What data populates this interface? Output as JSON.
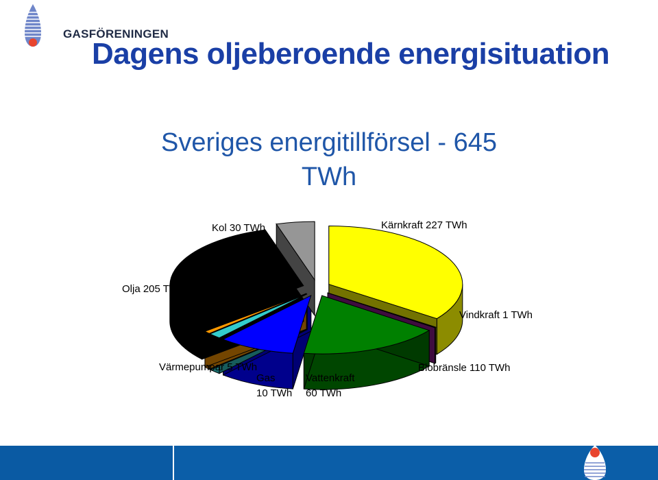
{
  "logo": {
    "text": "GASFÖRENINGEN"
  },
  "slide": {
    "title": "Dagens oljeberoende energisituation"
  },
  "chart_data": {
    "type": "pie",
    "title_line1": "Sveriges energitillförsel - 645",
    "title_line2": "TWh",
    "slices": [
      {
        "name": "Kärnkraft",
        "value": 227,
        "label": "Kärnkraft 227 TWh",
        "color": "#ffff00"
      },
      {
        "name": "Vindkraft",
        "value": 1,
        "label": "Vindkraft 1 TWh",
        "color": "#8b1a8b"
      },
      {
        "name": "Biobränsle",
        "value": 110,
        "label": "Biobränsle 110 TWh",
        "color": "#008000"
      },
      {
        "name": "Vattenkraft",
        "value": 60,
        "label_line1": "Vattenkraft",
        "label_line2": "60 TWh",
        "color": "#0000ff"
      },
      {
        "name": "Gas",
        "value": 10,
        "label_line1": "Gas",
        "label_line2": "10 TWh",
        "color": "#33cccc"
      },
      {
        "name": "Värmepumpar",
        "value": 5,
        "label": "Värmepumpar 5 TWh",
        "color": "#ff9900"
      },
      {
        "name": "Olja",
        "value": 205,
        "label": "Olja 205 TWh",
        "color": "#000000"
      },
      {
        "name": "Kol",
        "value": 30,
        "label": "Kol 30 TWh",
        "color": "#969696"
      }
    ]
  }
}
